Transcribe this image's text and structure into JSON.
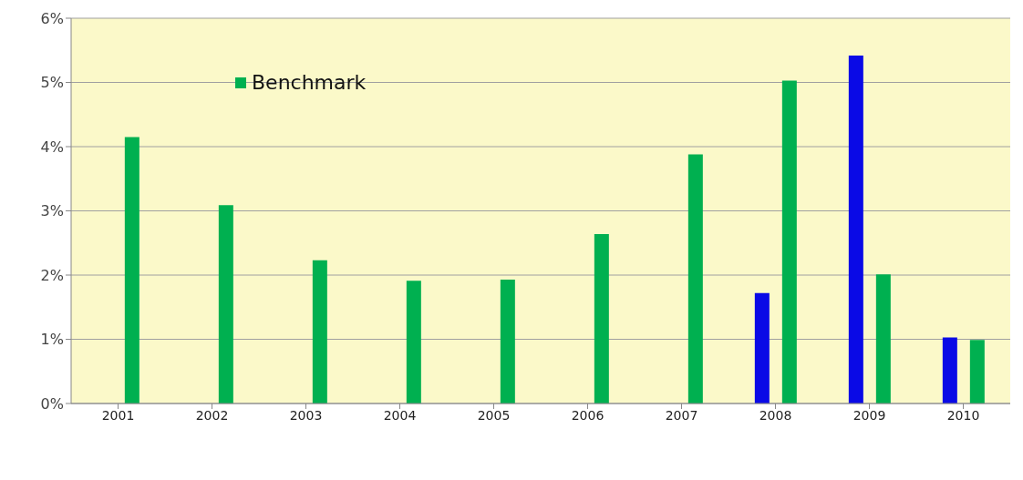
{
  "chart_data": {
    "type": "bar",
    "categories": [
      "2001",
      "2002",
      "2003",
      "2004",
      "2005",
      "2006",
      "2007",
      "2008",
      "2009",
      "2010"
    ],
    "series": [
      {
        "color": "#0a0ae6",
        "values": [
          null,
          null,
          null,
          null,
          null,
          null,
          null,
          1.72,
          5.42,
          1.03
        ]
      },
      {
        "name": "Benchmark",
        "color": "#00b050",
        "values": [
          4.15,
          3.09,
          2.23,
          1.91,
          1.93,
          2.64,
          3.88,
          5.03,
          2.01,
          0.99
        ]
      }
    ],
    "ylim": [
      0,
      6
    ],
    "yticks": [
      {
        "value": 0,
        "label": "0%"
      },
      {
        "value": 1,
        "label": "1%"
      },
      {
        "value": 2,
        "label": "2%"
      },
      {
        "value": 3,
        "label": "3%"
      },
      {
        "value": 4,
        "label": "4%"
      },
      {
        "value": 5,
        "label": "5%"
      },
      {
        "value": 6,
        "label": "6%"
      }
    ],
    "grid": "y",
    "legend": "top left"
  }
}
